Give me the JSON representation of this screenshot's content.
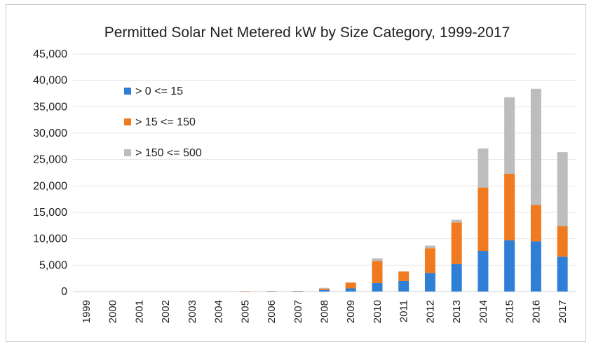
{
  "chart_data": {
    "type": "bar",
    "stacked": true,
    "title": "Permitted Solar Net Metered kW by Size Category, 1999-2017",
    "xlabel": "",
    "ylabel": "",
    "ylim": [
      0,
      45000
    ],
    "yticks": [
      "0",
      "5,000",
      "10,000",
      "15,000",
      "20,000",
      "25,000",
      "30,000",
      "35,000",
      "40,000",
      "45,000"
    ],
    "grid": true,
    "legend_position": "top-left",
    "categories": [
      "1999",
      "2000",
      "2001",
      "2002",
      "2003",
      "2004",
      "2005",
      "2006",
      "2007",
      "2008",
      "2009",
      "2010",
      "2011",
      "2012",
      "2013",
      "2014",
      "2015",
      "2016",
      "2017"
    ],
    "series": [
      {
        "name": "> 0 <= 15",
        "color": "#2f7fd6",
        "values": [
          0,
          0,
          0,
          0,
          0,
          0,
          30,
          80,
          100,
          300,
          600,
          1600,
          2000,
          3500,
          5200,
          7700,
          9700,
          9500,
          6600
        ]
      },
      {
        "name": "> 15 <= 150",
        "color": "#f07a1f",
        "values": [
          0,
          0,
          0,
          0,
          0,
          0,
          10,
          20,
          30,
          250,
          1100,
          4200,
          1800,
          4700,
          7900,
          12000,
          12600,
          6900,
          5800
        ]
      },
      {
        "name": "> 150 <= 500",
        "color": "#bdbdbd",
        "values": [
          0,
          0,
          0,
          0,
          0,
          0,
          0,
          0,
          0,
          150,
          0,
          500,
          0,
          500,
          500,
          7400,
          14500,
          22000,
          14000
        ]
      }
    ]
  }
}
